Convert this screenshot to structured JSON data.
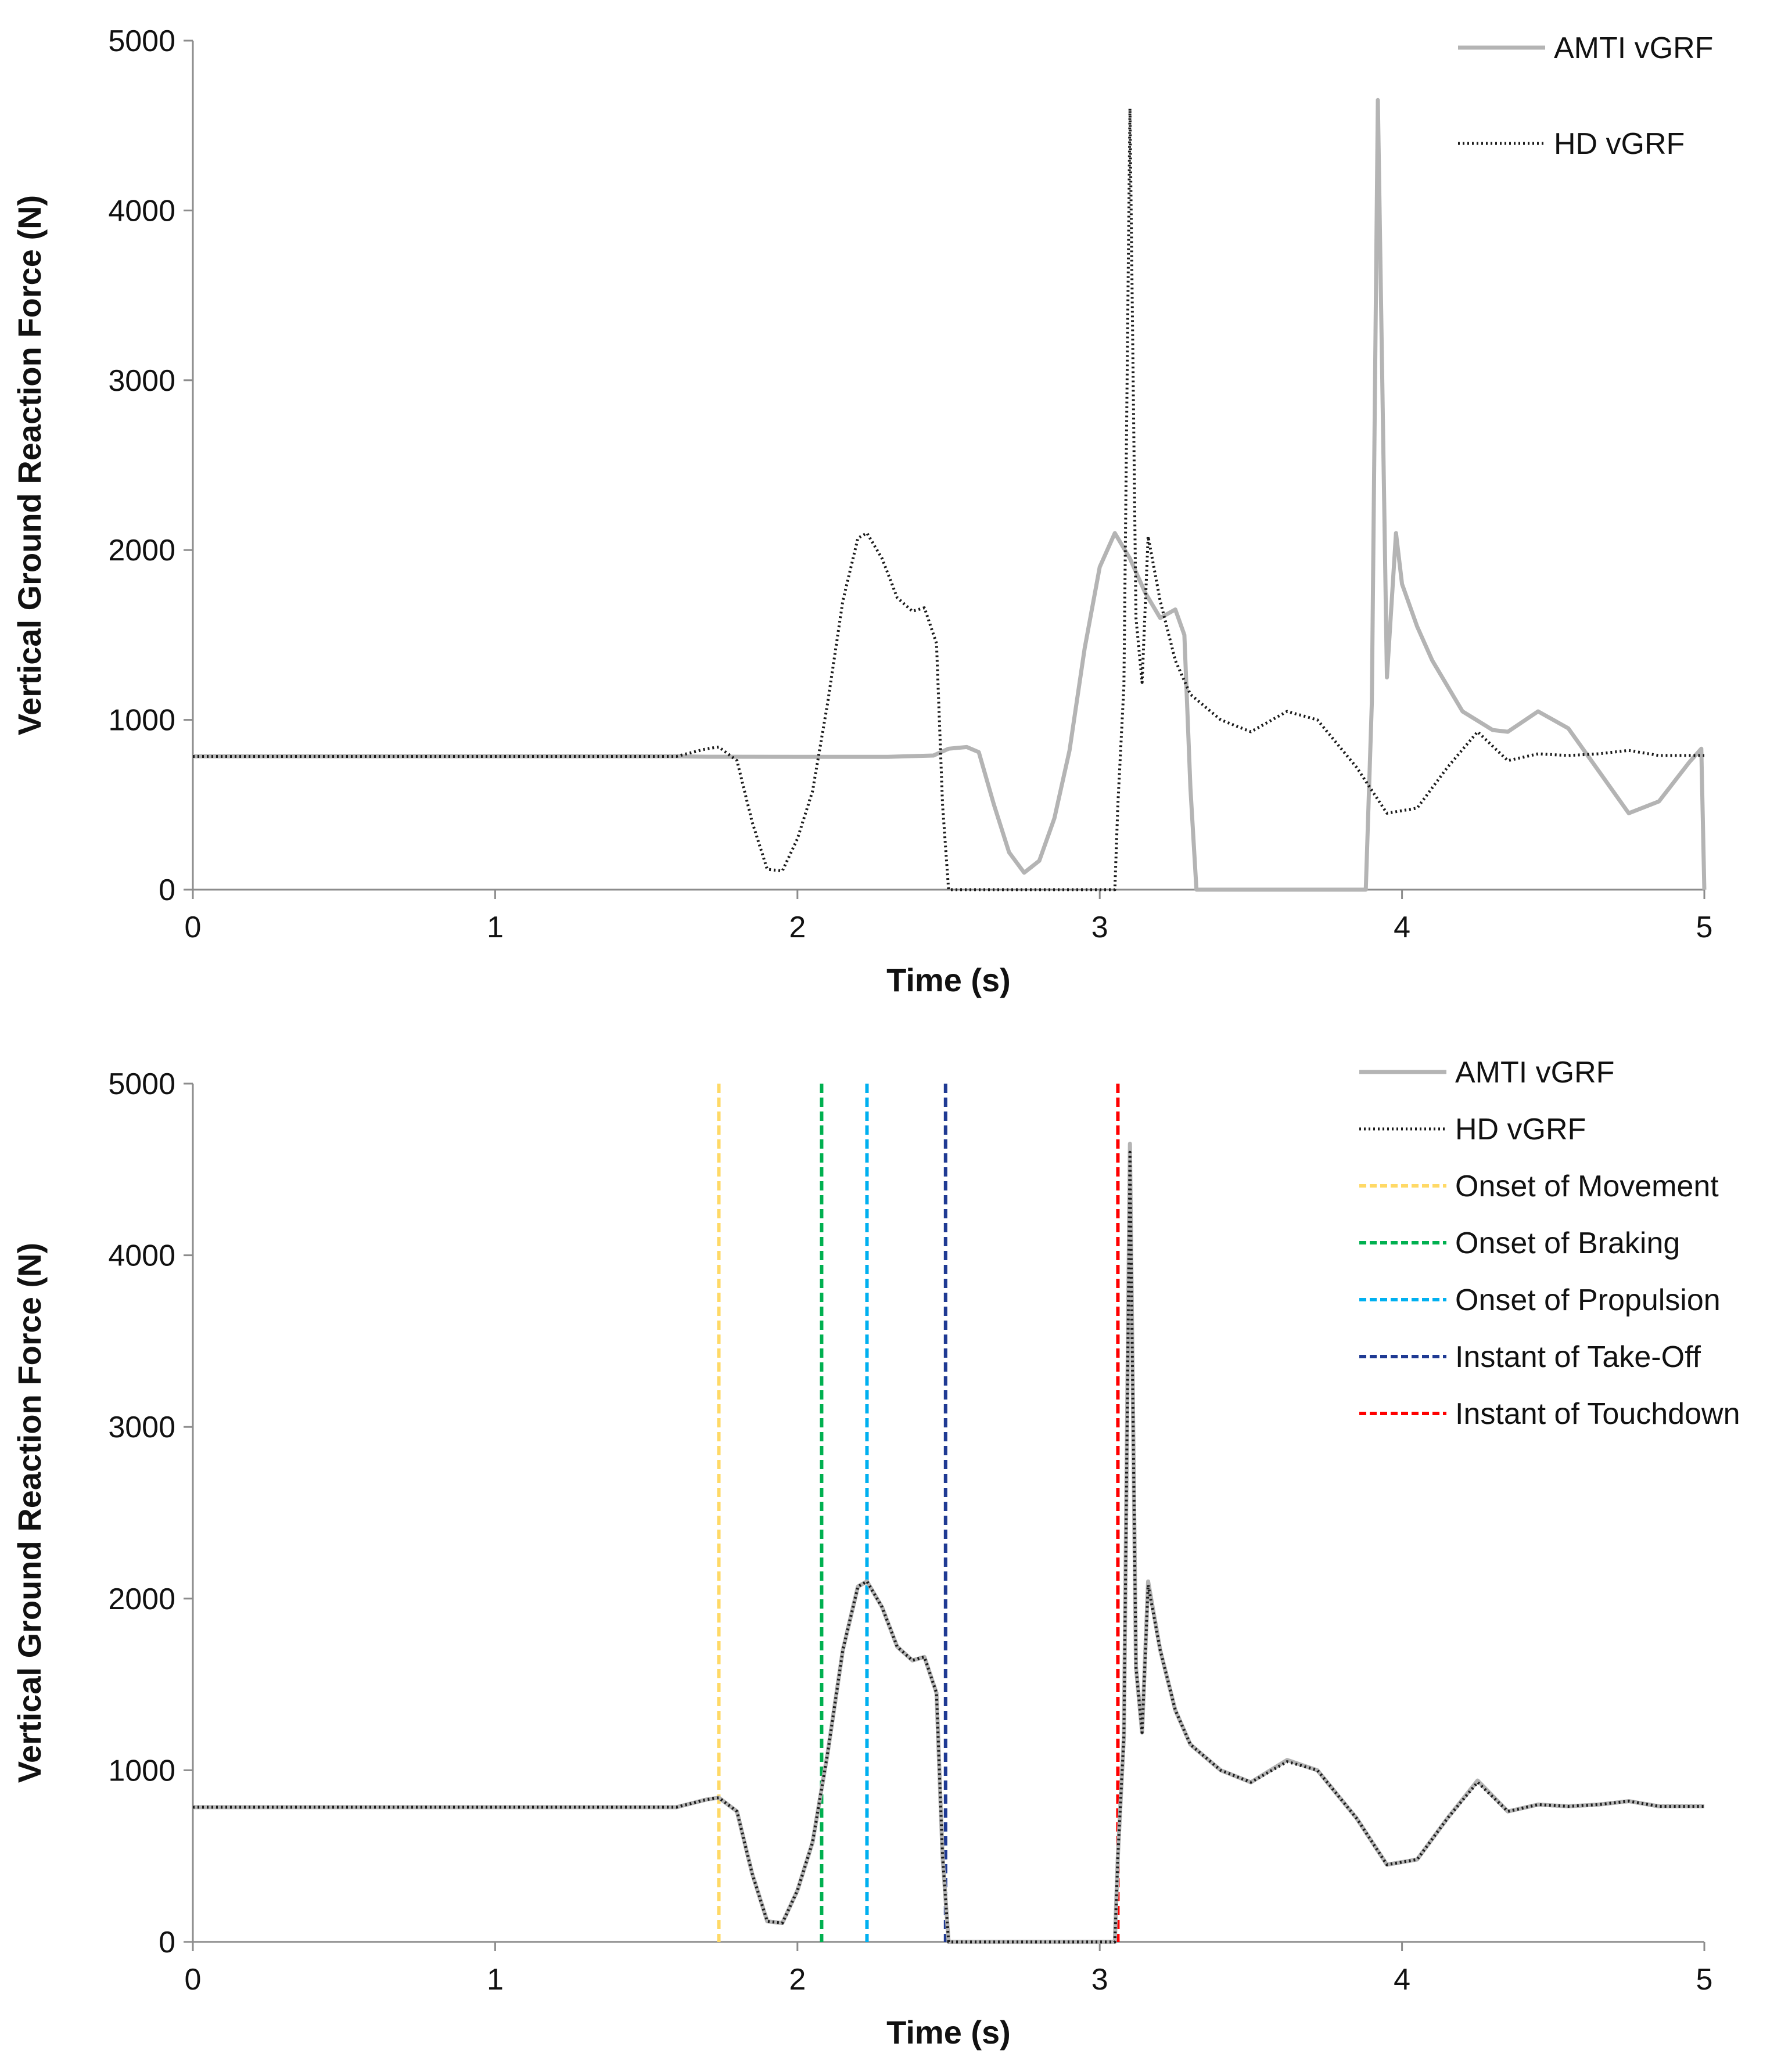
{
  "colors": {
    "amti": "#b4b4b4",
    "hd": "#1a1a1a",
    "axis": "#8c8c8c",
    "onset_movement": "#ffd966",
    "onset_braking": "#00b050",
    "onset_propulsion": "#00b0f0",
    "take_off": "#1f3a93",
    "touchdown": "#ff0000"
  },
  "chart_data": [
    {
      "type": "line",
      "title": "",
      "xlabel": "Time (s)",
      "ylabel": "Vertical Ground Reaction Force (N)",
      "xlim": [
        0,
        5
      ],
      "ylim": [
        0,
        5000
      ],
      "xticks": [
        "0",
        "1",
        "2",
        "3",
        "4",
        "5"
      ],
      "yticks": [
        "0",
        "1000",
        "2000",
        "3000",
        "4000",
        "5000"
      ],
      "legend_position": "top-right",
      "legend": [
        "AMTI vGRF",
        "HD vGRF"
      ],
      "series": [
        {
          "name": "AMTI vGRF",
          "style": "solid",
          "color_key": "amti",
          "points": [
            [
              0,
              785
            ],
            [
              1.6,
              785
            ],
            [
              1.7,
              783
            ],
            [
              2.0,
              782
            ],
            [
              2.3,
              782
            ],
            [
              2.45,
              790
            ],
            [
              2.5,
              830
            ],
            [
              2.56,
              840
            ],
            [
              2.6,
              810
            ],
            [
              2.65,
              500
            ],
            [
              2.7,
              220
            ],
            [
              2.75,
              100
            ],
            [
              2.8,
              170
            ],
            [
              2.85,
              420
            ],
            [
              2.9,
              820
            ],
            [
              2.95,
              1420
            ],
            [
              3.0,
              1900
            ],
            [
              3.05,
              2100
            ],
            [
              3.1,
              1950
            ],
            [
              3.15,
              1750
            ],
            [
              3.2,
              1600
            ],
            [
              3.25,
              1650
            ],
            [
              3.28,
              1500
            ],
            [
              3.3,
              600
            ],
            [
              3.32,
              0
            ],
            [
              3.88,
              0
            ],
            [
              3.9,
              1100
            ],
            [
              3.92,
              4650
            ],
            [
              3.95,
              1250
            ],
            [
              3.98,
              2100
            ],
            [
              4.0,
              1800
            ],
            [
              4.05,
              1550
            ],
            [
              4.1,
              1350
            ],
            [
              4.2,
              1050
            ],
            [
              4.3,
              940
            ],
            [
              4.35,
              930
            ],
            [
              4.45,
              1050
            ],
            [
              4.55,
              950
            ],
            [
              4.65,
              700
            ],
            [
              4.75,
              450
            ],
            [
              4.85,
              520
            ],
            [
              4.95,
              750
            ],
            [
              4.99,
              830
            ],
            [
              5.0,
              0
            ]
          ]
        },
        {
          "name": "HD vGRF",
          "style": "dotted",
          "color_key": "hd",
          "points": [
            [
              0,
              785
            ],
            [
              1.6,
              785
            ],
            [
              1.7,
              830
            ],
            [
              1.74,
              840
            ],
            [
              1.8,
              760
            ],
            [
              1.85,
              400
            ],
            [
              1.9,
              120
            ],
            [
              1.95,
              110
            ],
            [
              2.0,
              300
            ],
            [
              2.05,
              580
            ],
            [
              2.1,
              1100
            ],
            [
              2.15,
              1700
            ],
            [
              2.2,
              2070
            ],
            [
              2.23,
              2100
            ],
            [
              2.28,
              1950
            ],
            [
              2.33,
              1720
            ],
            [
              2.38,
              1640
            ],
            [
              2.42,
              1660
            ],
            [
              2.46,
              1450
            ],
            [
              2.48,
              500
            ],
            [
              2.5,
              0
            ],
            [
              3.05,
              0
            ],
            [
              3.06,
              500
            ],
            [
              3.08,
              1200
            ],
            [
              3.1,
              4600
            ],
            [
              3.12,
              1600
            ],
            [
              3.14,
              1220
            ],
            [
              3.16,
              2080
            ],
            [
              3.2,
              1700
            ],
            [
              3.25,
              1350
            ],
            [
              3.3,
              1150
            ],
            [
              3.4,
              1000
            ],
            [
              3.5,
              930
            ],
            [
              3.62,
              1050
            ],
            [
              3.72,
              1000
            ],
            [
              3.85,
              720
            ],
            [
              3.95,
              450
            ],
            [
              4.05,
              480
            ],
            [
              4.15,
              720
            ],
            [
              4.25,
              930
            ],
            [
              4.35,
              760
            ],
            [
              4.45,
              800
            ],
            [
              4.55,
              790
            ],
            [
              4.65,
              800
            ],
            [
              4.75,
              820
            ],
            [
              4.85,
              790
            ],
            [
              5.0,
              790
            ]
          ]
        }
      ]
    },
    {
      "type": "line",
      "title": "",
      "xlabel": "Time (s)",
      "ylabel": "Vertical Ground Reaction Force (N)",
      "xlim": [
        0,
        5
      ],
      "ylim": [
        0,
        5000
      ],
      "xticks": [
        "0",
        "1",
        "2",
        "3",
        "4",
        "5"
      ],
      "yticks": [
        "0",
        "1000",
        "2000",
        "3000",
        "4000",
        "5000"
      ],
      "legend_position": "top-right",
      "legend": [
        "AMTI vGRF",
        "HD vGRF",
        "Onset of Movement",
        "Onset of Braking",
        "Onset of Propulsion",
        "Instant of Take-Off",
        "Instant of Touchdown"
      ],
      "series": [
        {
          "name": "AMTI vGRF",
          "style": "solid",
          "color_key": "amti",
          "points": [
            [
              0,
              785
            ],
            [
              1.6,
              785
            ],
            [
              1.7,
              830
            ],
            [
              1.74,
              840
            ],
            [
              1.8,
              760
            ],
            [
              1.85,
              400
            ],
            [
              1.9,
              120
            ],
            [
              1.95,
              110
            ],
            [
              2.0,
              300
            ],
            [
              2.05,
              580
            ],
            [
              2.1,
              1100
            ],
            [
              2.15,
              1700
            ],
            [
              2.2,
              2070
            ],
            [
              2.23,
              2100
            ],
            [
              2.28,
              1950
            ],
            [
              2.33,
              1720
            ],
            [
              2.38,
              1640
            ],
            [
              2.42,
              1660
            ],
            [
              2.46,
              1450
            ],
            [
              2.48,
              500
            ],
            [
              2.5,
              0
            ],
            [
              3.05,
              0
            ],
            [
              3.06,
              500
            ],
            [
              3.08,
              1200
            ],
            [
              3.1,
              4650
            ],
            [
              3.12,
              1600
            ],
            [
              3.14,
              1220
            ],
            [
              3.16,
              2100
            ],
            [
              3.2,
              1700
            ],
            [
              3.25,
              1350
            ],
            [
              3.3,
              1150
            ],
            [
              3.4,
              1000
            ],
            [
              3.5,
              930
            ],
            [
              3.62,
              1060
            ],
            [
              3.72,
              1000
            ],
            [
              3.85,
              720
            ],
            [
              3.95,
              450
            ],
            [
              4.05,
              480
            ],
            [
              4.15,
              720
            ],
            [
              4.25,
              940
            ],
            [
              4.35,
              760
            ],
            [
              4.45,
              800
            ],
            [
              4.55,
              790
            ],
            [
              4.65,
              800
            ],
            [
              4.75,
              820
            ],
            [
              4.85,
              790
            ],
            [
              5.0,
              790
            ]
          ]
        },
        {
          "name": "HD vGRF",
          "style": "dotted",
          "color_key": "hd",
          "points": [
            [
              0,
              785
            ],
            [
              1.6,
              785
            ],
            [
              1.7,
              830
            ],
            [
              1.74,
              840
            ],
            [
              1.8,
              760
            ],
            [
              1.85,
              400
            ],
            [
              1.9,
              120
            ],
            [
              1.95,
              110
            ],
            [
              2.0,
              300
            ],
            [
              2.05,
              580
            ],
            [
              2.1,
              1100
            ],
            [
              2.15,
              1700
            ],
            [
              2.2,
              2070
            ],
            [
              2.23,
              2100
            ],
            [
              2.28,
              1950
            ],
            [
              2.33,
              1720
            ],
            [
              2.38,
              1640
            ],
            [
              2.42,
              1660
            ],
            [
              2.46,
              1450
            ],
            [
              2.48,
              500
            ],
            [
              2.5,
              0
            ],
            [
              3.05,
              0
            ],
            [
              3.06,
              500
            ],
            [
              3.08,
              1200
            ],
            [
              3.1,
              4600
            ],
            [
              3.12,
              1600
            ],
            [
              3.14,
              1220
            ],
            [
              3.16,
              2080
            ],
            [
              3.2,
              1700
            ],
            [
              3.25,
              1350
            ],
            [
              3.3,
              1150
            ],
            [
              3.4,
              1000
            ],
            [
              3.5,
              930
            ],
            [
              3.62,
              1050
            ],
            [
              3.72,
              1000
            ],
            [
              3.85,
              720
            ],
            [
              3.95,
              450
            ],
            [
              4.05,
              480
            ],
            [
              4.15,
              720
            ],
            [
              4.25,
              930
            ],
            [
              4.35,
              760
            ],
            [
              4.45,
              800
            ],
            [
              4.55,
              790
            ],
            [
              4.65,
              800
            ],
            [
              4.75,
              820
            ],
            [
              4.85,
              790
            ],
            [
              5.0,
              790
            ]
          ]
        }
      ],
      "markers": [
        {
          "name": "Onset of Movement",
          "x": 1.74,
          "color_key": "onset_movement"
        },
        {
          "name": "Onset of Braking",
          "x": 2.08,
          "color_key": "onset_braking"
        },
        {
          "name": "Onset of Propulsion",
          "x": 2.23,
          "color_key": "onset_propulsion"
        },
        {
          "name": "Instant of Take-Off",
          "x": 2.49,
          "color_key": "take_off"
        },
        {
          "name": "Instant of Touchdown",
          "x": 3.06,
          "color_key": "touchdown"
        }
      ]
    }
  ]
}
